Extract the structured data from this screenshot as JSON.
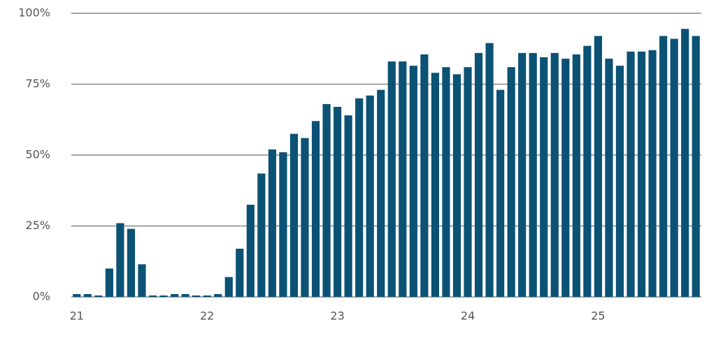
{
  "chart_data": {
    "type": "bar",
    "categories": [
      "21",
      null,
      null,
      null,
      null,
      null,
      null,
      null,
      null,
      null,
      null,
      null,
      "22",
      null,
      null,
      null,
      null,
      null,
      null,
      null,
      null,
      null,
      null,
      null,
      "23",
      null,
      null,
      null,
      null,
      null,
      null,
      null,
      null,
      null,
      null,
      null,
      "24",
      null,
      null,
      null,
      null,
      null,
      null,
      null,
      null,
      null,
      null,
      null,
      "25",
      null,
      null,
      null,
      null,
      null,
      null,
      null,
      null,
      null
    ],
    "values": [
      1,
      1,
      0.5,
      10,
      26,
      24,
      11.5,
      0.5,
      0.5,
      1,
      1,
      0.5,
      0.5,
      1,
      7,
      17,
      32.5,
      43.5,
      52,
      51,
      57.5,
      56,
      62,
      68,
      67,
      64,
      70,
      71,
      73,
      83,
      83,
      81.5,
      85.5,
      79,
      81,
      78.5,
      81,
      86,
      89.5,
      73,
      81,
      86,
      86,
      84.5,
      86,
      84,
      85.5,
      88.5,
      92,
      84,
      81.5,
      86.5,
      86.5,
      87,
      92,
      91,
      94.5,
      92
    ],
    "color": "#0b5275",
    "ylim": [
      0,
      100
    ],
    "yticks": [
      {
        "value": 0,
        "label": "0%"
      },
      {
        "value": 25,
        "label": "25%"
      },
      {
        "value": 50,
        "label": "50%"
      },
      {
        "value": 75,
        "label": "75%"
      },
      {
        "value": 100,
        "label": "100%"
      }
    ],
    "grid": true
  }
}
